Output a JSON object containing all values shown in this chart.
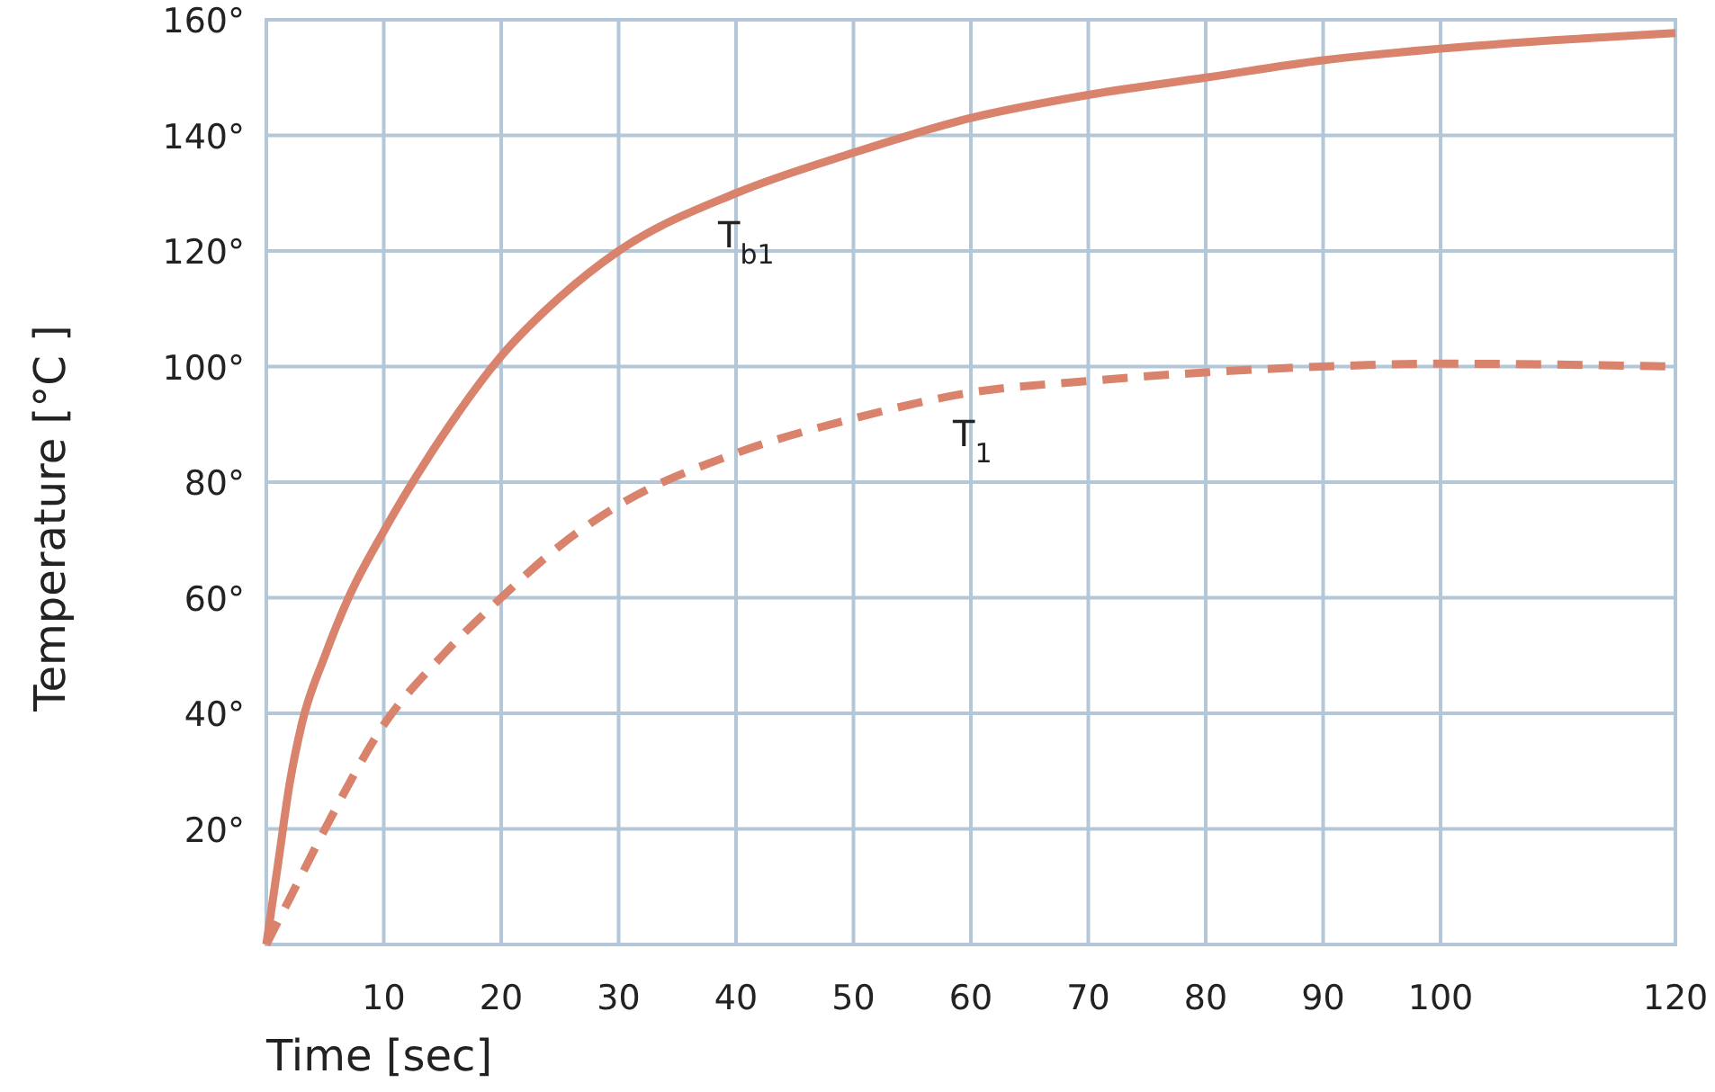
{
  "chart_data": {
    "type": "line",
    "xlabel": "Time [sec]",
    "ylabel": "Temperature [°C ]",
    "xlim": [
      0,
      120
    ],
    "ylim": [
      0,
      160
    ],
    "xticks": [
      10,
      20,
      30,
      40,
      50,
      60,
      70,
      80,
      90,
      100,
      120
    ],
    "yticks": [
      {
        "value": 20,
        "label": "20°"
      },
      {
        "value": 40,
        "label": "40°"
      },
      {
        "value": 60,
        "label": "60°"
      },
      {
        "value": 80,
        "label": "80°"
      },
      {
        "value": 100,
        "label": "100°"
      },
      {
        "value": 120,
        "label": "120°"
      },
      {
        "value": 140,
        "label": "140°"
      },
      {
        "value": 160,
        "label": "160°"
      }
    ],
    "grid": true,
    "marker": "none",
    "series": [
      {
        "name": "T$_{b1}$",
        "color": "#d9826c",
        "line_style": "solid",
        "x": [
          0,
          1,
          2,
          3,
          5,
          7,
          10,
          15,
          20,
          25,
          30,
          40,
          50,
          60,
          70,
          80,
          90,
          100,
          120
        ],
        "values": [
          0,
          14,
          28,
          38,
          50,
          60,
          71.5,
          88,
          101.8,
          112,
          120,
          130,
          137,
          143,
          147,
          150,
          153,
          155,
          157.7
        ]
      },
      {
        "name": "T$_{1}$",
        "color": "#d9826c",
        "line_style": "dashed",
        "x": [
          0,
          2,
          5,
          10,
          15,
          20,
          25,
          30,
          40,
          50,
          60,
          70,
          80,
          90,
          100,
          120
        ],
        "values": [
          0,
          8,
          20,
          38,
          50,
          60,
          69,
          76,
          85,
          91,
          95.5,
          97.5,
          99,
          100,
          100.5,
          100
        ]
      }
    ]
  }
}
